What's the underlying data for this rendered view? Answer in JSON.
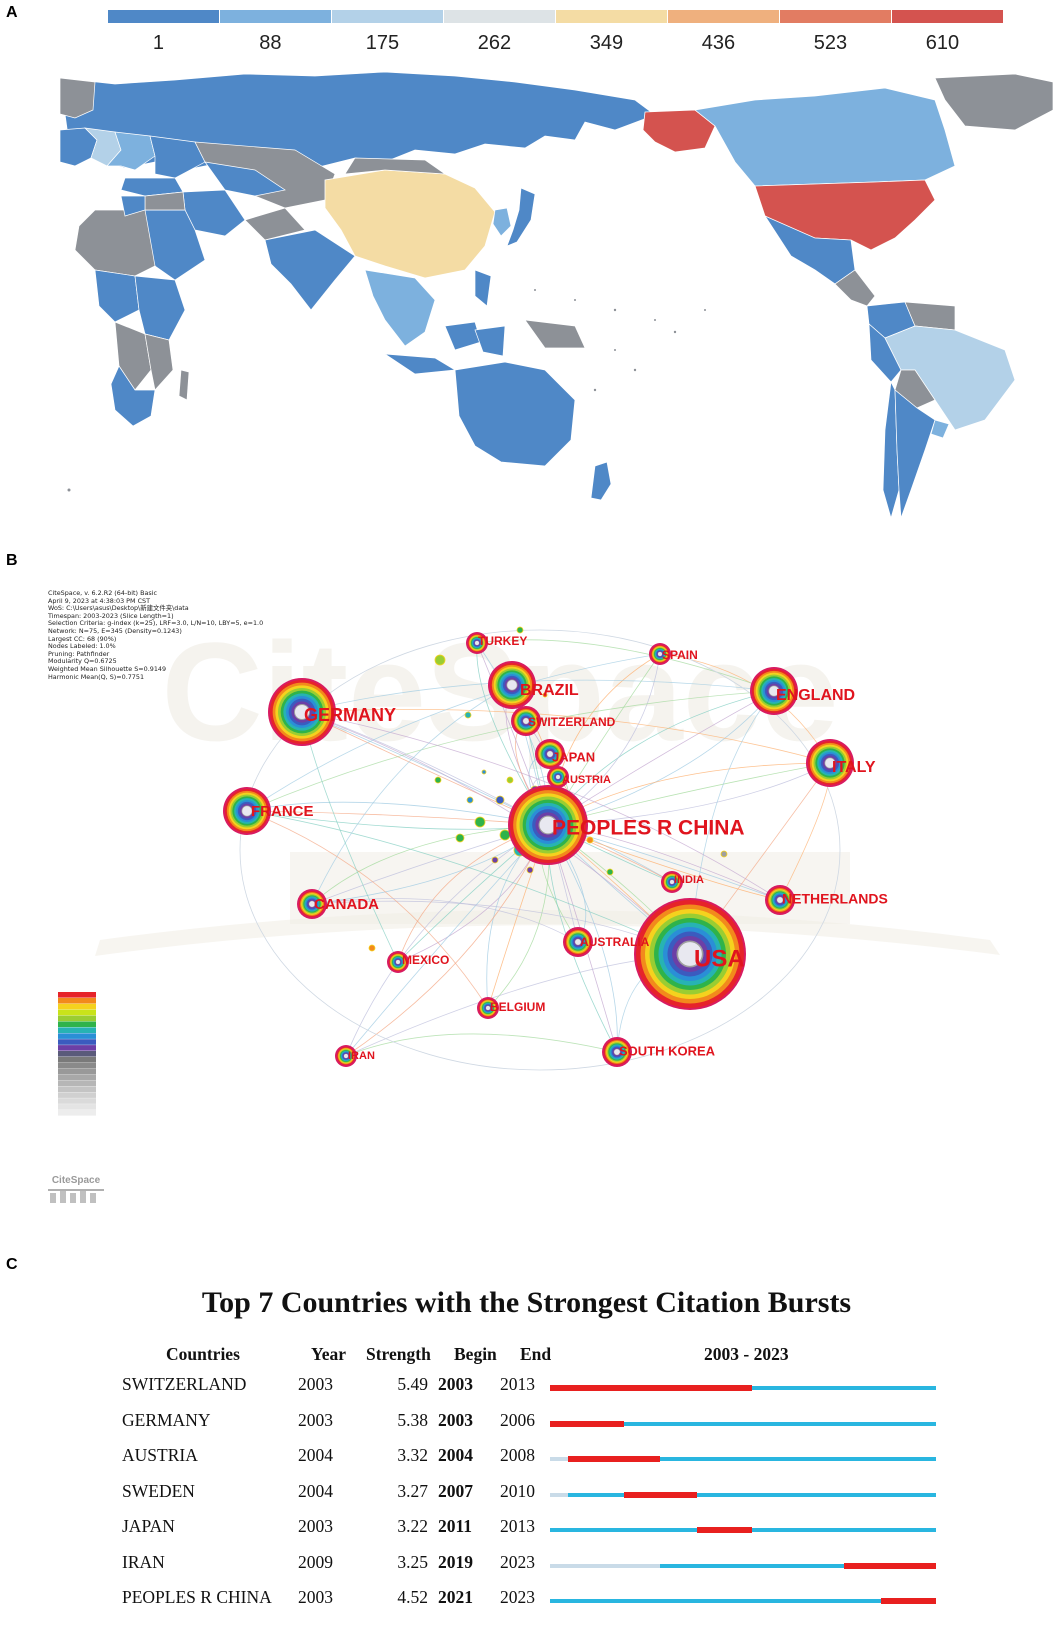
{
  "panels": {
    "a": "A",
    "b": "B",
    "c": "C"
  },
  "colors": {
    "scale": [
      "#4f88c7",
      "#7db1de",
      "#b3d1e8",
      "#dde3e6",
      "#f4dca4",
      "#efb07e",
      "#e27c62",
      "#d4534f"
    ],
    "no_data": "#8d9197",
    "ocean": "#ffffff",
    "burst_active": "#e8201f",
    "burst_idle": "#29b6e0",
    "burst_pre": "#c9dbe8",
    "label_red": "#e0141e"
  },
  "map_legend": {
    "labels": [
      "1",
      "88",
      "175",
      "262",
      "349",
      "436",
      "523",
      "610"
    ]
  },
  "network": {
    "meta_lines": [
      "CiteSpace, v. 6.2.R2 (64-bit) Basic",
      "April 9, 2023 at 4:38:03 PM CST",
      "WoS: C:\\Users\\asus\\Desktop\\新建文件夹\\data",
      "Timespan: 2003-2023 (Slice Length=1)",
      "Selection Criteria: g-index (k=25), LRF=3.0, L/N=10, LBY=5, e=1.0",
      "Network: N=75, E=345 (Density=0.1243)",
      "Largest CC: 68 (90%)",
      "Nodes Labeled: 1.0%",
      "Pruning: Pathfinder",
      "Modularity Q=0.6725",
      "Weighted Mean Silhouette S=0.9149",
      "Harmonic Mean(Q, S)=0.7751"
    ],
    "watermark": "CiteSpace",
    "logo_text": "CiteSpace",
    "nodes": [
      {
        "label": "PEOPLES R CHINA",
        "size": "xl"
      },
      {
        "label": "USA",
        "size": "xxl"
      },
      {
        "label": "GERMANY",
        "size": "l"
      },
      {
        "label": "ENGLAND",
        "size": "m"
      },
      {
        "label": "ITALY",
        "size": "m"
      },
      {
        "label": "FRANCE",
        "size": "m"
      },
      {
        "label": "BRAZIL",
        "size": "m"
      },
      {
        "label": "CANADA",
        "size": "s"
      },
      {
        "label": "SWITZERLAND",
        "size": "s"
      },
      {
        "label": "JAPAN",
        "size": "s"
      },
      {
        "label": "AUSTRIA",
        "size": "xs"
      },
      {
        "label": "TURKEY",
        "size": "xs"
      },
      {
        "label": "SPAIN",
        "size": "xs"
      },
      {
        "label": "INDIA",
        "size": "xs"
      },
      {
        "label": "NETHERLANDS",
        "size": "s"
      },
      {
        "label": "AUSTRALIA",
        "size": "s"
      },
      {
        "label": "MEXICO",
        "size": "xs"
      },
      {
        "label": "BELGIUM",
        "size": "xs"
      },
      {
        "label": "IRAN",
        "size": "xs"
      },
      {
        "label": "SOUTH KOREA",
        "size": "s"
      }
    ]
  },
  "bursts": {
    "title": "Top 7 Countries with the Strongest Citation Bursts",
    "headers": {
      "country": "Countries",
      "year": "Year",
      "strength": "Strength",
      "begin": "Begin",
      "end": "End",
      "range": "2003 - 2023"
    },
    "range_start": 2003,
    "range_end": 2023
  },
  "chart_data": {
    "type": "table",
    "title": "Top 7 Countries with the Strongest Citation Bursts",
    "columns": [
      "Countries",
      "Year",
      "Strength",
      "Begin",
      "End",
      "2003 - 2023"
    ],
    "rows": [
      {
        "country": "SWITZERLAND",
        "year": "2003",
        "strength": "5.49",
        "begin": "2003",
        "end": "2013"
      },
      {
        "country": "GERMANY",
        "year": "2003",
        "strength": "5.38",
        "begin": "2003",
        "end": "2006"
      },
      {
        "country": "AUSTRIA",
        "year": "2004",
        "strength": "3.32",
        "begin": "2004",
        "end": "2008"
      },
      {
        "country": "SWEDEN",
        "year": "2004",
        "strength": "3.27",
        "begin": "2007",
        "end": "2010"
      },
      {
        "country": "JAPAN",
        "year": "2003",
        "strength": "3.22",
        "begin": "2011",
        "end": "2013"
      },
      {
        "country": "IRAN",
        "year": "2009",
        "strength": "3.25",
        "begin": "2019",
        "end": "2023"
      },
      {
        "country": "PEOPLES R CHINA",
        "year": "2003",
        "strength": "4.52",
        "begin": "2021",
        "end": "2023"
      }
    ]
  }
}
